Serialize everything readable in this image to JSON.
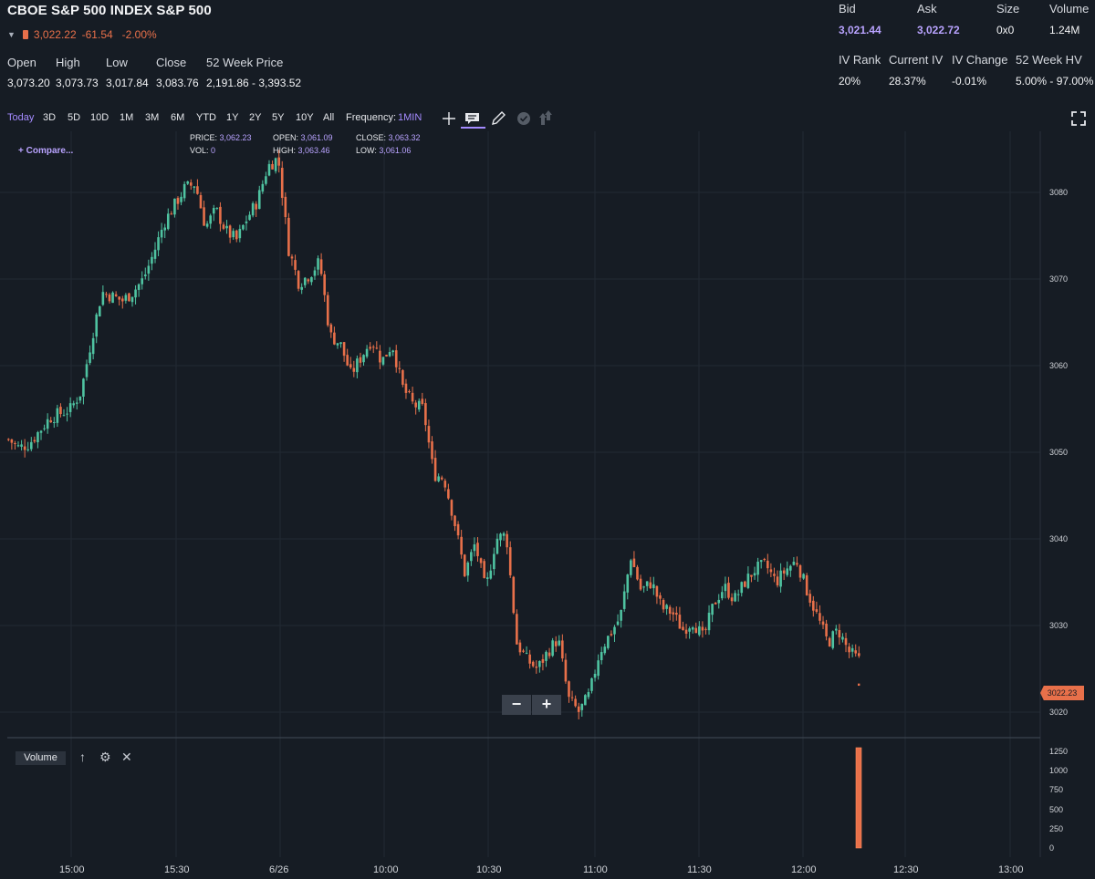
{
  "header": {
    "title": "CBOE S&P 500 INDEX S&P 500",
    "last_price": "3,022.22",
    "change": "-61.54",
    "change_pct": "-2.00%"
  },
  "stats": {
    "open": {
      "label": "Open",
      "value": "3,073.20"
    },
    "high": {
      "label": "High",
      "value": "3,073.73"
    },
    "low": {
      "label": "Low",
      "value": "3,017.84"
    },
    "close": {
      "label": "Close",
      "value": "3,083.76"
    },
    "week52": {
      "label": "52 Week Price",
      "value": "2,191.86 - 3,393.52"
    }
  },
  "quote": {
    "bid": {
      "label": "Bid",
      "value": "3,021.44"
    },
    "ask": {
      "label": "Ask",
      "value": "3,022.72"
    },
    "size": {
      "label": "Size",
      "value": "0x0"
    },
    "volume": {
      "label": "Volume",
      "value": "1.24M"
    }
  },
  "iv": {
    "rank": {
      "label": "IV Rank",
      "value": "20%"
    },
    "current": {
      "label": "Current IV",
      "value": "28.37%"
    },
    "change": {
      "label": "IV Change",
      "value": "-0.01%"
    },
    "hv52": {
      "label": "52 Week HV",
      "value": "5.00% - 97.00%"
    }
  },
  "toolbar": {
    "timeframes": [
      "Today",
      "3D",
      "5D",
      "10D",
      "1M",
      "3M",
      "6M",
      "YTD",
      "1Y",
      "2Y",
      "5Y",
      "10Y",
      "All"
    ],
    "active_timeframe": "Today",
    "frequency_label": "Frequency:",
    "frequency_value": "1MIN",
    "icons": [
      "crosshair-icon",
      "notes-icon",
      "pencil-icon",
      "check-circle-icon",
      "share-icon",
      "fullscreen-icon"
    ]
  },
  "tooltip": {
    "price_label": "PRICE:",
    "price": "3,062.23",
    "vol_label": "VOL:",
    "vol": "0",
    "open_label": "OPEN:",
    "open": "3,061.09",
    "high_label": "HIGH:",
    "high": "3,063.46",
    "close_label": "CLOSE:",
    "close": "3,063.32",
    "low_label": "LOW:",
    "low": "3,061.06"
  },
  "compare_label": "+ Compare...",
  "zoom": {
    "minus": "−",
    "plus": "+"
  },
  "volume_panel": {
    "label": "Volume",
    "ticks": [
      "1250",
      "1000",
      "750",
      "500",
      "250",
      "0"
    ]
  },
  "price_tag": "3022.23",
  "colors": {
    "up": "#4fc3a1",
    "down": "#e8704a",
    "accent": "#a48bff",
    "background": "#161c24"
  },
  "chart_data": {
    "type": "candlestick",
    "y_ticks": [
      "3080",
      "3070",
      "3060",
      "3050",
      "3040",
      "3030",
      "3020"
    ],
    "x_ticks": [
      "15:00",
      "15:30",
      "6/26",
      "10:00",
      "10:30",
      "11:00",
      "11:30",
      "12:00",
      "12:30",
      "13:00"
    ],
    "close_path": [
      3051.5,
      3050.5,
      3051,
      3052.5,
      3054,
      3054.5,
      3055,
      3057,
      3063,
      3068.5,
      3068,
      3067.5,
      3068.5,
      3070,
      3073,
      3076.5,
      3078.5,
      3080.5,
      3081,
      3076,
      3078,
      3075.5,
      3074.5,
      3077,
      3079,
      3083,
      3084,
      3073.5,
      3069.5,
      3070.5,
      3072,
      3063.5,
      3062.5,
      3059,
      3061,
      3063,
      3060.5,
      3062.5,
      3057.5,
      3055.5,
      3055,
      3047.5,
      3047,
      3042,
      3036,
      3039.5,
      3034,
      3040,
      3040.5,
      3028,
      3026,
      3025,
      3027,
      3028.5,
      3021.5,
      3020,
      3022,
      3027,
      3029,
      3031,
      3038,
      3034,
      3035,
      3032,
      3031.5,
      3029.5,
      3030.5,
      3028.5,
      3032.5,
      3034.5,
      3033,
      3035,
      3036.5,
      3037,
      3035,
      3036.5,
      3037.5,
      3034,
      3031,
      3028,
      3029.5,
      3027,
      3026
    ],
    "last_volume": 1250
  }
}
